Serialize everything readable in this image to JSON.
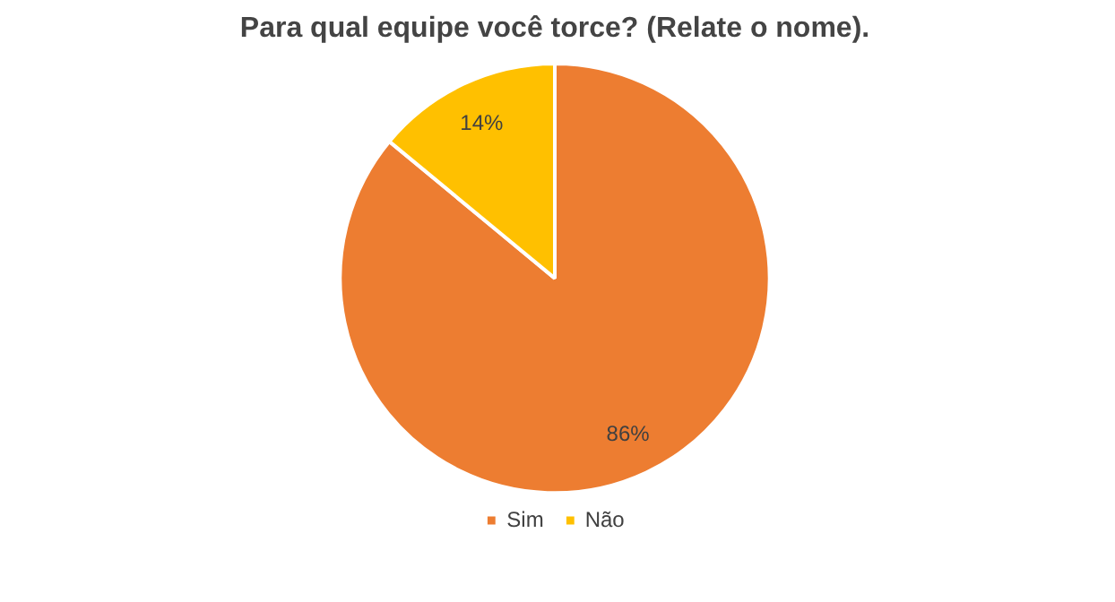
{
  "chart_data": {
    "type": "pie",
    "title": "Para qual equipe você torce? (Relate o nome).",
    "categories": [
      "Sim",
      "Não"
    ],
    "values": [
      86,
      14
    ],
    "colors": [
      "#ed7d31",
      "#ffc000"
    ],
    "value_labels": [
      "86%",
      "14%"
    ],
    "legend": "bottom"
  }
}
